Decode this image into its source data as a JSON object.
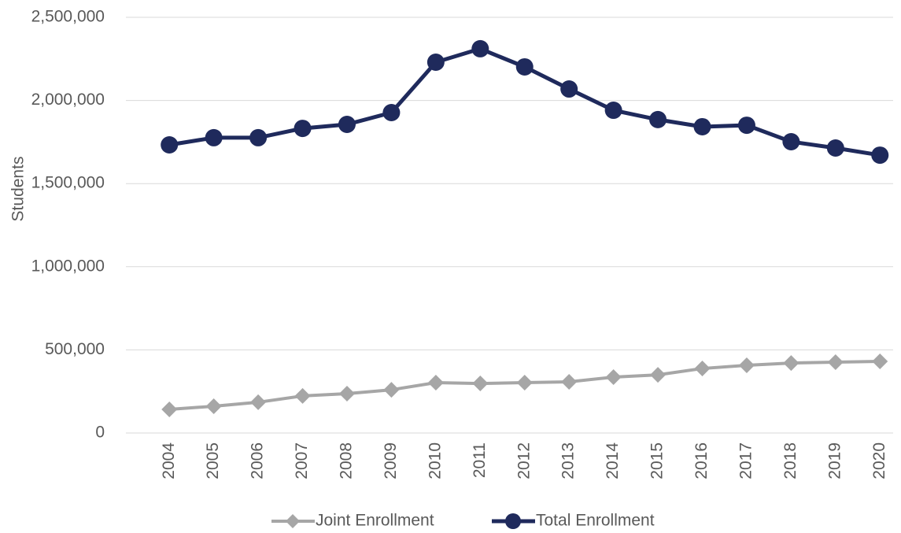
{
  "chart_data": {
    "type": "line",
    "ylabel": "Students",
    "categories": [
      "2004",
      "2005",
      "2006",
      "2007",
      "2008",
      "2009",
      "2010",
      "2011",
      "2012",
      "2013",
      "2014",
      "2015",
      "2016",
      "2017",
      "2018",
      "2019",
      "2020"
    ],
    "series": [
      {
        "name": "Joint Enrollment",
        "color": "#a6a6a6",
        "marker": "diamond",
        "values": [
          142000,
          161000,
          185000,
          223000,
          237000,
          260000,
          303000,
          298000,
          303000,
          308000,
          336000,
          350000,
          388000,
          407000,
          421000,
          426000,
          431000
        ]
      },
      {
        "name": "Total Enrollment",
        "color": "#1f2a5c",
        "marker": "circle",
        "values": [
          1733000,
          1776000,
          1776000,
          1832000,
          1856000,
          1927000,
          2230000,
          2311000,
          2202000,
          2069000,
          1941000,
          1885000,
          1842000,
          1851000,
          1752000,
          1714000,
          1671000
        ]
      }
    ],
    "ylim": [
      0,
      2500000
    ],
    "yticks": [
      0,
      {
        "value": 500000,
        "label": "500,000"
      },
      {
        "value": 1000000,
        "label": "1,000,000"
      },
      {
        "value": 1500000,
        "label": "1,500,000"
      },
      {
        "value": 2000000,
        "label": "2,000,000"
      },
      {
        "value": 2500000,
        "label": "2,500,000"
      }
    ],
    "grid": true,
    "legend": "bottom"
  }
}
